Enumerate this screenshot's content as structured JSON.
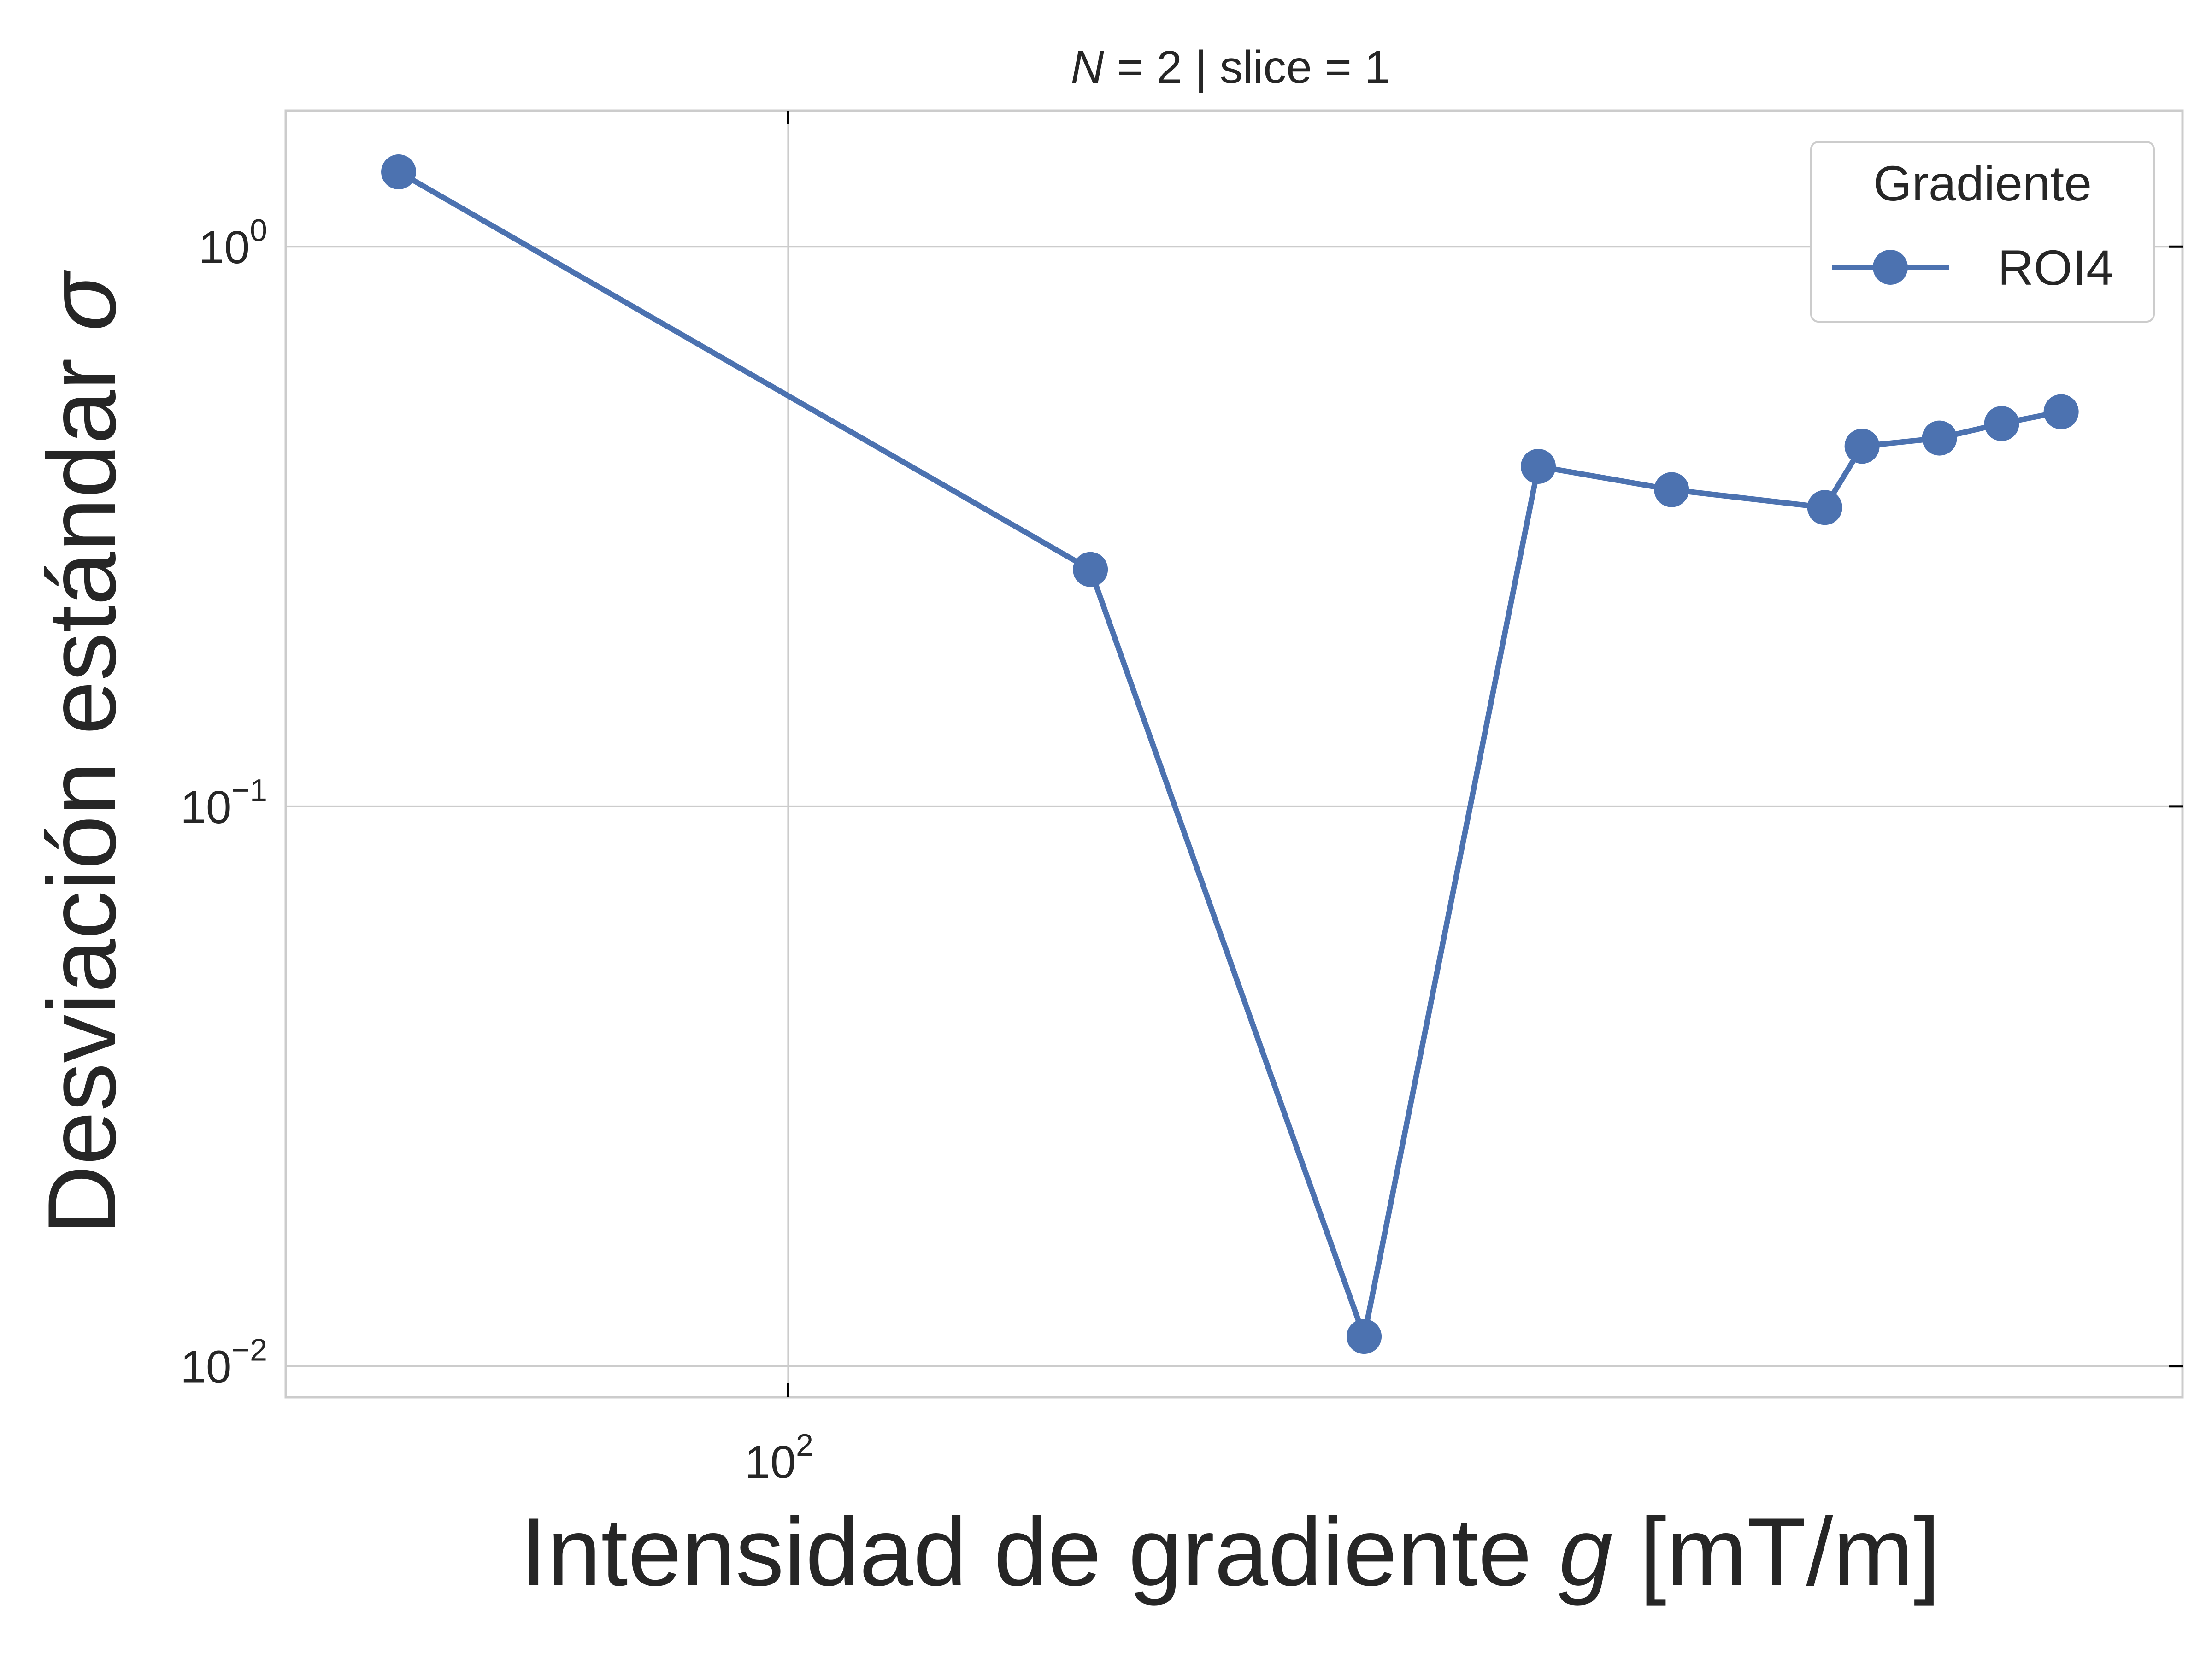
{
  "chart_data": {
    "type": "line",
    "title_prefix": "N",
    "title_suffix": " = 2 | slice = 1",
    "xlabel_prefix": "Intensidad de gradiente ",
    "xlabel_var": "g",
    "xlabel_suffix": " [mT/m]",
    "ylabel_prefix": "Desviación estándar ",
    "ylabel_var": "σ",
    "x_scale": "log",
    "y_scale": "log",
    "xlim": [
      69,
      280
    ],
    "ylim": [
      0.0088,
      1.75
    ],
    "x_ticks": [
      {
        "base": "10",
        "exp": "2",
        "value": 100
      }
    ],
    "y_ticks": [
      {
        "base": "10",
        "exp": "0",
        "value": 1
      },
      {
        "base": "10",
        "exp": "−1",
        "value": 0.1
      },
      {
        "base": "10",
        "exp": "−2",
        "value": 0.01
      }
    ],
    "grid": true,
    "legend": {
      "title": "Gradiente",
      "position": "top-right"
    },
    "series": [
      {
        "name": "ROI4",
        "color": "#4c72b0",
        "x": [
          75,
          125,
          153,
          174,
          192,
          215,
          221,
          234,
          245,
          256
        ],
        "y": [
          1.36,
          0.265,
          0.0113,
          0.405,
          0.368,
          0.342,
          0.44,
          0.455,
          0.483,
          0.507
        ]
      }
    ]
  }
}
